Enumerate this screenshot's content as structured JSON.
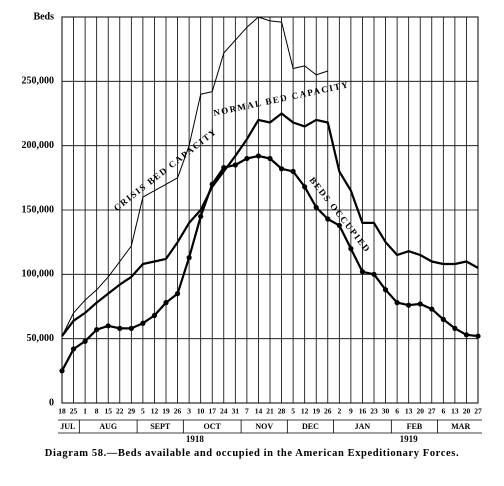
{
  "chart_data": {
    "type": "line",
    "caption": "Diagram 58.—Beds available and occupied in the American Expeditionary Forces.",
    "years": [
      {
        "label": "1918",
        "months": [
          {
            "label": "JUL",
            "days": [
              "18",
              "25"
            ]
          },
          {
            "label": "AUG",
            "days": [
              "1",
              "8",
              "15",
              "22",
              "29"
            ]
          },
          {
            "label": "SEPT",
            "days": [
              "5",
              "12",
              "19",
              "26"
            ]
          },
          {
            "label": "OCT",
            "days": [
              "3",
              "10",
              "17",
              "24",
              "31"
            ]
          },
          {
            "label": "NOV",
            "days": [
              "7",
              "14",
              "21",
              "28"
            ]
          },
          {
            "label": "DEC",
            "days": [
              "5",
              "12",
              "19",
              "26"
            ]
          }
        ]
      },
      {
        "label": "1919",
        "months": [
          {
            "label": "JAN",
            "days": [
              "2",
              "9",
              "16",
              "23",
              "30"
            ]
          },
          {
            "label": "FEB",
            "days": [
              "6",
              "13",
              "20",
              "27"
            ]
          },
          {
            "label": "MAR",
            "days": [
              "6",
              "13",
              "20",
              "27"
            ]
          }
        ]
      }
    ],
    "ylim": [
      0,
      300000
    ],
    "yticks": [
      0,
      {
        "value": 50000,
        "label": "50,000"
      },
      {
        "value": 100000,
        "label": "100,000"
      },
      {
        "value": 150000,
        "label": "150,000"
      },
      {
        "value": 200000,
        "label": "200,000"
      },
      {
        "value": 250000,
        "label": "250,000"
      },
      {
        "value": 300000,
        "label": "Beds"
      }
    ],
    "grid": true,
    "series": [
      {
        "name": "CRISIS BED CAPACITY",
        "color": "#000000",
        "marker": "none",
        "values": [
          52000,
          70000,
          80000,
          88000,
          98000,
          110000,
          122000,
          160000,
          165000,
          170000,
          175000,
          200000,
          240000,
          242000,
          272000,
          282000,
          292000,
          300000,
          297000,
          296000,
          260000,
          262000,
          255000,
          258000,
          null,
          null,
          null,
          null,
          null,
          null,
          null,
          null,
          null,
          null,
          null,
          null,
          null
        ]
      },
      {
        "name": "NORMAL BED CAPACITY",
        "color": "#000000",
        "marker": "none",
        "values": [
          52000,
          64000,
          70000,
          78000,
          85000,
          92000,
          98000,
          108000,
          110000,
          112000,
          125000,
          140000,
          150000,
          168000,
          180000,
          192000,
          205000,
          220000,
          218000,
          225000,
          218000,
          215000,
          220000,
          218000,
          180000,
          165000,
          140000,
          140000,
          125000,
          115000,
          118000,
          115000,
          110000,
          108000,
          108000,
          110000,
          105000
        ]
      },
      {
        "name": "BEDS OCCUPIED",
        "color": "#000000",
        "marker": "circle",
        "values": [
          25000,
          42000,
          48000,
          57000,
          60000,
          58000,
          58000,
          62000,
          68000,
          78000,
          85000,
          113000,
          145000,
          170000,
          183000,
          185000,
          190000,
          192000,
          190000,
          182000,
          180000,
          168000,
          152000,
          143000,
          138000,
          120000,
          102000,
          100000,
          88000,
          78000,
          76000,
          77000,
          73000,
          65000,
          58000,
          53000,
          52000
        ]
      }
    ]
  }
}
